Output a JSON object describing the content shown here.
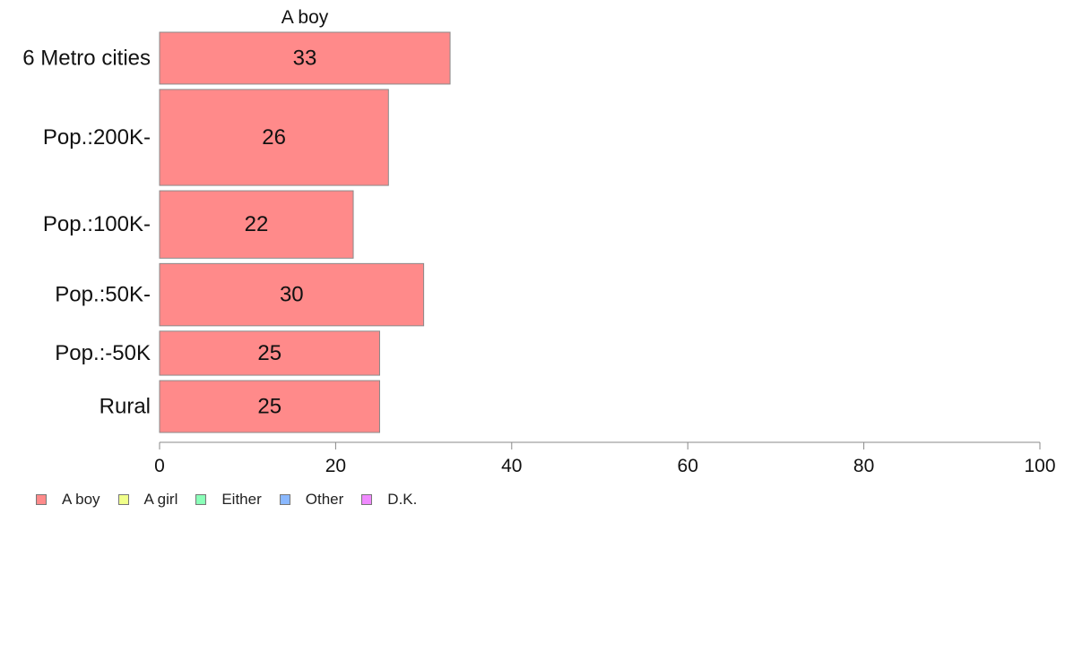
{
  "chart_data": {
    "type": "bar",
    "orientation": "horizontal",
    "title": "A boy",
    "categories": [
      "6 Metro cities",
      "Pop.:200K-",
      "Pop.:100K-",
      "Pop.:50K-",
      "Pop.:-50K",
      "Rural"
    ],
    "series": [
      {
        "name": "A boy",
        "values": [
          33,
          26,
          22,
          30,
          25,
          25
        ],
        "color": "#ff8a8a"
      }
    ],
    "data_labels": [
      "33",
      "26",
      "22",
      "30",
      "25",
      "25"
    ],
    "xlim": [
      0,
      100
    ],
    "xticks": [
      0,
      20,
      40,
      60,
      80,
      100
    ],
    "xtick_labels": [
      "0",
      "20",
      "40",
      "60",
      "80",
      "100"
    ],
    "category_weights": [
      1.0,
      1.85,
      1.3,
      1.2,
      0.85,
      1.0
    ],
    "legend_position": "bottom-left",
    "legend": [
      {
        "label": "A boy",
        "color": "#ff8a8a"
      },
      {
        "label": "A girl",
        "color": "#f0ff8a"
      },
      {
        "label": "Either",
        "color": "#8affb8"
      },
      {
        "label": "Other",
        "color": "#8ab8ff"
      },
      {
        "label": "D.K.",
        "color": "#f08aff"
      }
    ]
  }
}
